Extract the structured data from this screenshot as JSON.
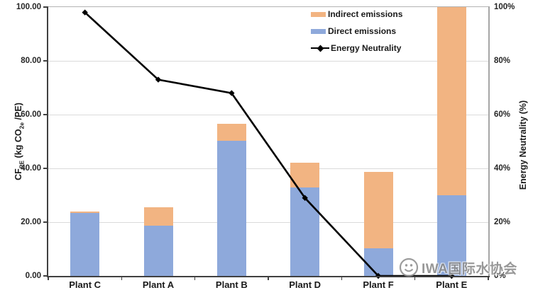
{
  "chart_data": {
    "type": "bar",
    "subtype": "stacked-column-with-line-overlay",
    "title": "",
    "categories": [
      "Plant C",
      "Plant A",
      "Plant B",
      "Plant D",
      "Plant F",
      "Plant E"
    ],
    "series": [
      {
        "name": "Direct emissions",
        "type": "bar",
        "color": "#8ea9db",
        "axis": "left",
        "values": [
          23.4,
          18.7,
          50.2,
          33.0,
          10.3,
          30.0
        ]
      },
      {
        "name": "Indirect emissions",
        "type": "bar",
        "color": "#f2b482",
        "axis": "left",
        "values": [
          0.5,
          6.9,
          6.4,
          9.0,
          28.5,
          70.0
        ]
      },
      {
        "name": "Energy Neutrality",
        "type": "line",
        "color": "#000000",
        "axis": "right",
        "marker": "diamond",
        "values": [
          98,
          73,
          68,
          29,
          0,
          0
        ]
      }
    ],
    "totals_per_category": [
      23.9,
      25.6,
      56.6,
      42.0,
      38.8,
      100.0
    ],
    "left_axis": {
      "title_parts": {
        "p1": "CF",
        "s1": "PE",
        "p2": " (kg CO",
        "s2": "2e",
        "p3": " /PE)"
      },
      "ticks": [
        "100.00",
        "80.00",
        "60.00",
        "40.00",
        "20.00",
        "0.00"
      ],
      "range": [
        0,
        100
      ]
    },
    "right_axis": {
      "title": "Energy Neutrality (%)",
      "ticks": [
        "100%",
        "80%",
        "60%",
        "40%",
        "20%",
        "0%"
      ],
      "range": [
        0,
        100
      ]
    },
    "legend": [
      {
        "label": "Indirect emissions",
        "swatch": "bar",
        "color": "#f2b482"
      },
      {
        "label": "Direct emissions",
        "swatch": "bar",
        "color": "#8ea9db"
      },
      {
        "label": "Energy Neutrality",
        "swatch": "line",
        "color": "#000000"
      }
    ],
    "grid": true,
    "legend_position": "top-right-inside",
    "colors": {
      "gridline": "#dadada",
      "axis": "#404040",
      "plot_border": "#a6a6a6"
    }
  },
  "watermark": {
    "text": "IWA国际水协会",
    "logo": "iwa-circle-logo"
  }
}
